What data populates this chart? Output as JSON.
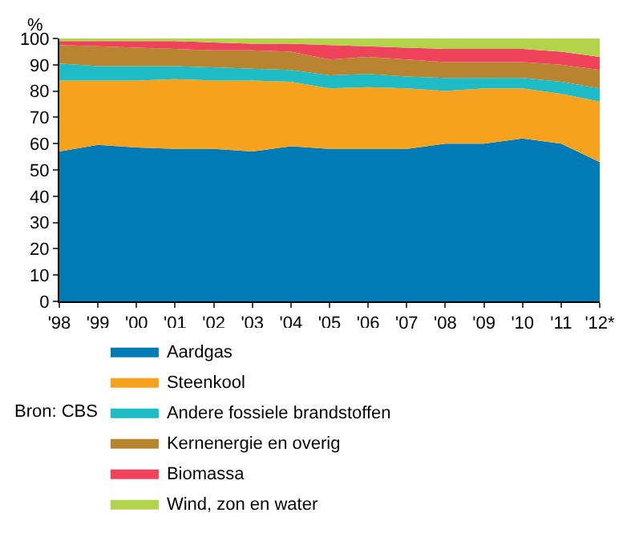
{
  "chart_data": {
    "type": "area",
    "stacked": true,
    "ylabel": "%",
    "categories": [
      "'98",
      "'99",
      "'00",
      "'01",
      "'02",
      "'03",
      "'04",
      "'05",
      "'06",
      "'07",
      "'08",
      "'09",
      "'10",
      "'11",
      "'12*"
    ],
    "series": [
      {
        "name": "Aardgas",
        "color": "#007bb5",
        "values": [
          57,
          59.5,
          58.5,
          58,
          58,
          57,
          59,
          58,
          58,
          58,
          60,
          60,
          62,
          60,
          53
        ]
      },
      {
        "name": "Steenkool",
        "color": "#f7a21c",
        "values": [
          27,
          24.5,
          25.5,
          26.5,
          26,
          27,
          24.5,
          23,
          23.5,
          23,
          20,
          21,
          19,
          19,
          23
        ]
      },
      {
        "name": "Andere fossiele brandstoffen",
        "color": "#1ebdc6",
        "values": [
          6.5,
          5.5,
          5.5,
          5,
          5,
          4.5,
          4.5,
          5,
          5,
          4.5,
          5,
          4,
          4,
          4.5,
          5
        ]
      },
      {
        "name": "Kernenergie en overig",
        "color": "#b8842f",
        "values": [
          7,
          7.5,
          7,
          6.5,
          6.5,
          7,
          7,
          6,
          6.5,
          6.5,
          6,
          6,
          6,
          6.5,
          7
        ]
      },
      {
        "name": "Biomassa",
        "color": "#ef435c",
        "values": [
          1.5,
          2,
          2.5,
          3,
          3,
          2.5,
          3,
          5.5,
          4,
          4.5,
          5,
          5,
          5,
          5,
          5
        ]
      },
      {
        "name": "Wind, zon en water",
        "color": "#b2d34a",
        "values": [
          1,
          1,
          1,
          1,
          1.5,
          2,
          2,
          2.5,
          3,
          3.5,
          4,
          4,
          4,
          5,
          7
        ]
      }
    ],
    "ylim": [
      0,
      100
    ],
    "yticks": [
      0,
      10,
      20,
      30,
      40,
      50,
      60,
      70,
      80,
      90,
      100
    ],
    "legend": "bottom",
    "annotations": [
      "Bron: CBS"
    ]
  }
}
